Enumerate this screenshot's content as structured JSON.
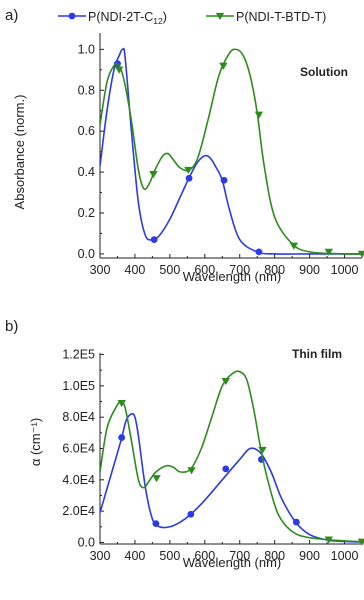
{
  "legend": {
    "series_1_text": "P(NDI-2T-C",
    "series_1_sub": "12",
    "series_1_tail": ")",
    "series_2_text": "P(NDI-T-BTD-T)"
  },
  "colors": {
    "blue": "#2b3be6",
    "green": "#2e8b1e",
    "axis": "#222222"
  },
  "chart_data": [
    {
      "panel_label": "a)",
      "type": "line",
      "annotation": "Solution",
      "xlabel": "Wavelength (nm)",
      "ylabel": "Absorbance (norm.)",
      "xlim": [
        300,
        1050
      ],
      "ylim": [
        -0.02,
        1.08
      ],
      "xticks": [
        300,
        400,
        500,
        600,
        700,
        800,
        900,
        1000
      ],
      "yticks": [
        0.0,
        0.2,
        0.4,
        0.6,
        0.8,
        1.0
      ],
      "ytick_labels": [
        "0.0",
        "0.2",
        "0.4",
        "0.6",
        "0.8",
        "1.0"
      ],
      "series": [
        {
          "name": "P(NDI-2T-C12)",
          "color": "blue",
          "marker": "circle",
          "x": [
            300,
            320,
            340,
            355,
            365,
            372,
            390,
            410,
            430,
            450,
            470,
            500,
            530,
            560,
            580,
            600,
            615,
            630,
            650,
            670,
            700,
            750,
            800,
            900,
            1050
          ],
          "y": [
            0.43,
            0.7,
            0.9,
            0.97,
            1.0,
            0.96,
            0.6,
            0.25,
            0.09,
            0.07,
            0.09,
            0.17,
            0.28,
            0.39,
            0.45,
            0.48,
            0.47,
            0.43,
            0.36,
            0.22,
            0.07,
            0.01,
            0.0,
            0.0,
            0.0
          ],
          "marker_x": [
            350,
            455,
            555,
            655,
            755
          ],
          "marker_y": [
            0.93,
            0.07,
            0.37,
            0.36,
            0.01
          ]
        },
        {
          "name": "P(NDI-T-BTD-T)",
          "color": "green",
          "marker": "triangle-down",
          "x": [
            300,
            320,
            340,
            355,
            370,
            390,
            410,
            425,
            440,
            460,
            480,
            495,
            510,
            530,
            555,
            580,
            610,
            640,
            670,
            690,
            710,
            730,
            750,
            770,
            800,
            850,
            900,
            1000,
            1050
          ],
          "y": [
            0.63,
            0.84,
            0.92,
            0.92,
            0.84,
            0.65,
            0.41,
            0.32,
            0.34,
            0.42,
            0.48,
            0.49,
            0.46,
            0.42,
            0.41,
            0.47,
            0.66,
            0.87,
            0.98,
            1.0,
            0.97,
            0.87,
            0.69,
            0.43,
            0.18,
            0.05,
            0.01,
            0.0,
            0.0
          ],
          "marker_x": [
            355,
            453,
            553,
            653,
            755,
            855,
            955,
            1050
          ],
          "marker_y": [
            0.9,
            0.39,
            0.41,
            0.92,
            0.68,
            0.04,
            0.01,
            0.0
          ]
        }
      ]
    },
    {
      "panel_label": "b)",
      "type": "line",
      "annotation": "Thin film",
      "xlabel": "Wavelength (nm)",
      "ylabel": "α (cm⁻¹)",
      "xlim": [
        300,
        1050
      ],
      "ylim": [
        -1000,
        121000
      ],
      "xticks": [
        300,
        400,
        500,
        600,
        700,
        800,
        900,
        1000
      ],
      "yticks": [
        0,
        20000,
        40000,
        60000,
        80000,
        100000,
        120000
      ],
      "ytick_labels": [
        "0.0",
        "2.0E4",
        "4.0E4",
        "6.0E4",
        "8.0E4",
        "1.0E5",
        "1.2E5"
      ],
      "series": [
        {
          "name": "P(NDI-2T-C12)",
          "color": "blue",
          "marker": "circle",
          "x": [
            300,
            330,
            360,
            375,
            390,
            400,
            410,
            430,
            450,
            470,
            500,
            530,
            560,
            600,
            650,
            700,
            730,
            760,
            790,
            820,
            860,
            900,
            950,
            1000,
            1050
          ],
          "y": [
            19000,
            42000,
            65000,
            78000,
            82000,
            80000,
            68000,
            35000,
            15000,
            10000,
            10000,
            13000,
            18000,
            27000,
            40000,
            53000,
            60000,
            57000,
            45000,
            28000,
            13000,
            5000,
            1500,
            600,
            300
          ],
          "marker_x": [
            362,
            460,
            560,
            660,
            762,
            862
          ],
          "marker_y": [
            67000,
            12000,
            18000,
            47000,
            53000,
            13000
          ]
        },
        {
          "name": "P(NDI-T-BTD-T)",
          "color": "green",
          "marker": "triangle-down",
          "x": [
            300,
            320,
            345,
            360,
            372,
            390,
            410,
            425,
            440,
            460,
            490,
            510,
            530,
            560,
            590,
            620,
            650,
            680,
            700,
            720,
            740,
            760,
            780,
            810,
            850,
            900,
            1000,
            1050
          ],
          "y": [
            45000,
            73000,
            86000,
            90000,
            86000,
            65000,
            40000,
            35000,
            39000,
            45000,
            49000,
            48000,
            45000,
            47000,
            60000,
            80000,
            100000,
            108000,
            109000,
            104000,
            85000,
            60000,
            40000,
            18000,
            7000,
            3000,
            1000,
            500
          ],
          "marker_x": [
            362,
            462,
            562,
            660,
            765,
            955,
            1050
          ],
          "marker_y": [
            89000,
            41000,
            46000,
            103000,
            59000,
            1800,
            400
          ]
        }
      ]
    }
  ]
}
